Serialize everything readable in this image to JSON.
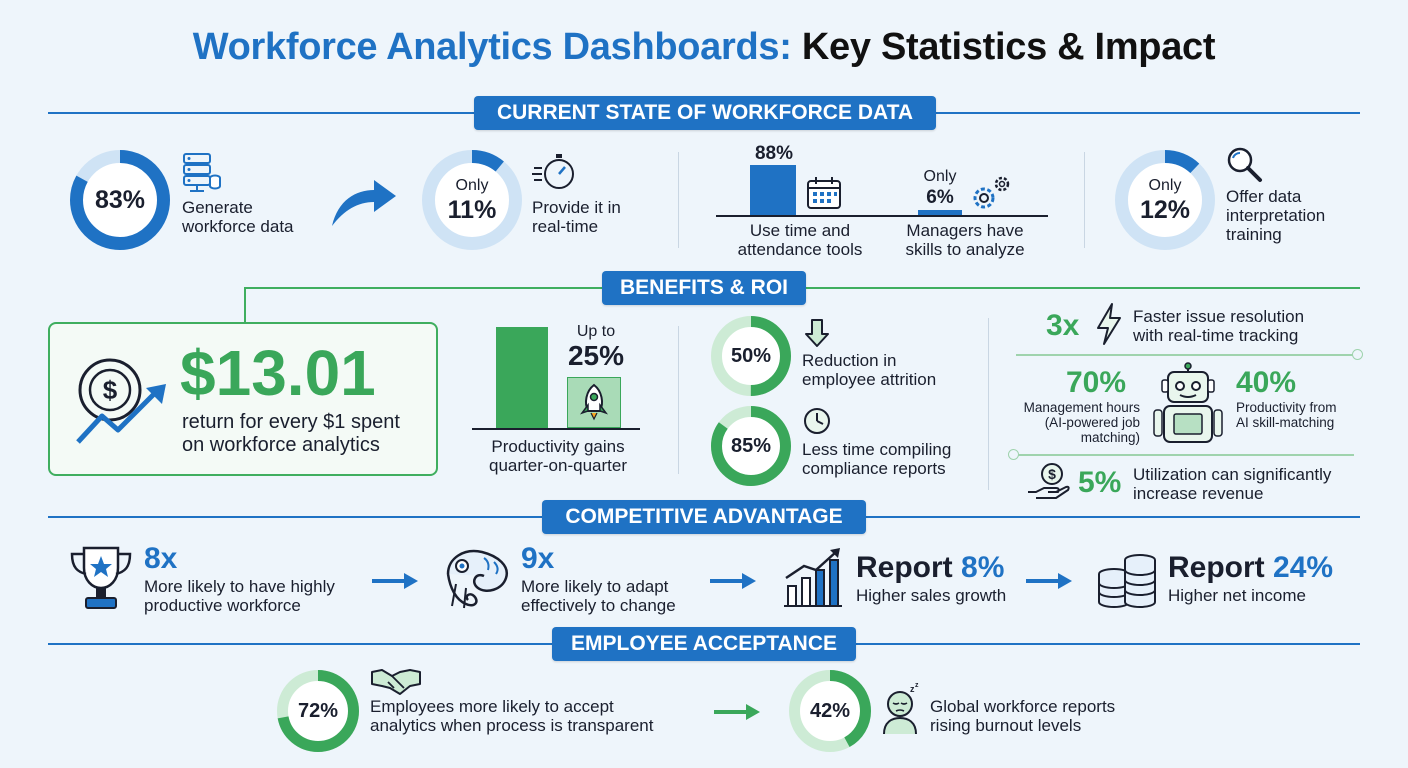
{
  "title": {
    "part1": "Workforce Analytics Dashboards:",
    "part2": "Key Statistics & Impact"
  },
  "sections": {
    "current": "CURRENT STATE OF WORKFORCE DATA",
    "benefits": "BENEFITS & ROI",
    "competitive": "COMPETITIVE ADVANTAGE",
    "acceptance": "EMPLOYEE ACCEPTANCE"
  },
  "current": {
    "generate": {
      "value": "83%",
      "fraction": 0.83,
      "text1": "Generate",
      "text2": "workforce data",
      "icon": "server-icon"
    },
    "realtime": {
      "prefix": "Only",
      "value": "11%",
      "fraction": 0.11,
      "text1": "Provide it in",
      "text2": "real-time",
      "icon": "stopwatch-icon"
    },
    "tools": {
      "value": "88%",
      "fraction": 0.88,
      "text1": "Use time and",
      "text2": "attendance tools",
      "icon": "calendar-icon"
    },
    "skills": {
      "prefix": "Only",
      "value": "6%",
      "fraction": 0.06,
      "text1": "Managers have",
      "text2": "skills to analyze",
      "icon": "gears-icon"
    },
    "training": {
      "prefix": "Only",
      "value": "12%",
      "fraction": 0.12,
      "text1": "Offer data",
      "text2": "interpretation",
      "text3": "training",
      "icon": "magnifier-icon"
    }
  },
  "benefits": {
    "roi": {
      "value": "$13.01",
      "text1": "return for every $1 spent",
      "text2": "on workforce analytics",
      "icon": "dollar-growth-icon"
    },
    "productivity": {
      "prefix": "Up to",
      "value": "25%",
      "fraction": 0.25,
      "text1": "Productivity gains",
      "text2": "quarter-on-quarter",
      "icon": "rocket-icon"
    },
    "attrition": {
      "value": "50%",
      "fraction": 0.5,
      "text1": "Reduction in",
      "text2": "employee attrition",
      "icon": "arrow-down-icon"
    },
    "compliance": {
      "value": "85%",
      "fraction": 0.85,
      "text1": "Less time compiling",
      "text2": "compliance reports",
      "icon": "clock-icon"
    },
    "faster": {
      "value": "3x",
      "text1": "Faster issue resolution",
      "text2": "with real-time tracking",
      "icon": "lightning-icon"
    },
    "mgmt": {
      "value": "70%",
      "text1": "Management hours",
      "text2": "(AI-powered job",
      "text3": "matching)"
    },
    "skillmatch": {
      "value": "40%",
      "text1": "Productivity from",
      "text2": "AI skill-matching",
      "icon": "robot-icon"
    },
    "utilization": {
      "value": "5%",
      "text1": "Utilization can significantly",
      "text2": "increase revenue",
      "icon": "money-hand-icon"
    }
  },
  "competitive": {
    "productive": {
      "value": "8x",
      "text1": "More likely to have highly",
      "text2": "productive workforce",
      "icon": "trophy-icon"
    },
    "adapt": {
      "value": "9x",
      "text1": "More likely to adapt",
      "text2": "effectively to change",
      "icon": "chameleon-icon"
    },
    "sales": {
      "prefix": "Report",
      "value": "8%",
      "text1": "Higher sales growth",
      "icon": "bar-chart-growth-icon"
    },
    "income": {
      "prefix": "Report",
      "value": "24%",
      "text1": "Higher net income",
      "icon": "coins-icon"
    }
  },
  "acceptance": {
    "transparent": {
      "value": "72%",
      "fraction": 0.72,
      "text1": "Employees more likely to accept",
      "text2": "analytics when process is transparent",
      "icon": "handshake-icon"
    },
    "burnout": {
      "value": "42%",
      "fraction": 0.42,
      "text1": "Global workforce reports",
      "text2": "rising burnout levels",
      "icon": "tired-person-icon"
    }
  },
  "colors": {
    "blue": "#1f72c4",
    "green": "#3aa75a",
    "lightBlue": "#cfe3f5",
    "lightGreen": "#cdebd5",
    "dark": "#1a1f2e"
  }
}
